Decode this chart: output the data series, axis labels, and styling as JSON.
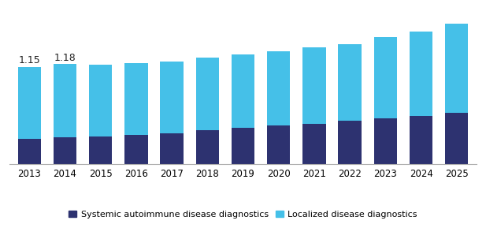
{
  "years": [
    2013,
    2014,
    2015,
    2016,
    2017,
    2018,
    2019,
    2020,
    2021,
    2022,
    2023,
    2024,
    2025
  ],
  "systemic": [
    0.3,
    0.32,
    0.33,
    0.35,
    0.36,
    0.4,
    0.43,
    0.46,
    0.48,
    0.51,
    0.54,
    0.57,
    0.61
  ],
  "localized": [
    0.85,
    0.86,
    0.84,
    0.84,
    0.85,
    0.86,
    0.87,
    0.87,
    0.9,
    0.91,
    0.96,
    1.0,
    1.05
  ],
  "bar_color_systemic": "#2d3270",
  "bar_color_localized": "#45c0e8",
  "annotations": [
    {
      "year_idx": 0,
      "value": "1.15"
    },
    {
      "year_idx": 1,
      "value": "1.18"
    }
  ],
  "legend_systemic": "Systemic autoimmune disease diagnostics",
  "legend_localized": "Localized disease diagnostics",
  "ylim": [
    0,
    1.75
  ],
  "background_color": "#ffffff",
  "bar_width": 0.65,
  "annotation_fontsize": 9,
  "tick_fontsize": 8.5
}
